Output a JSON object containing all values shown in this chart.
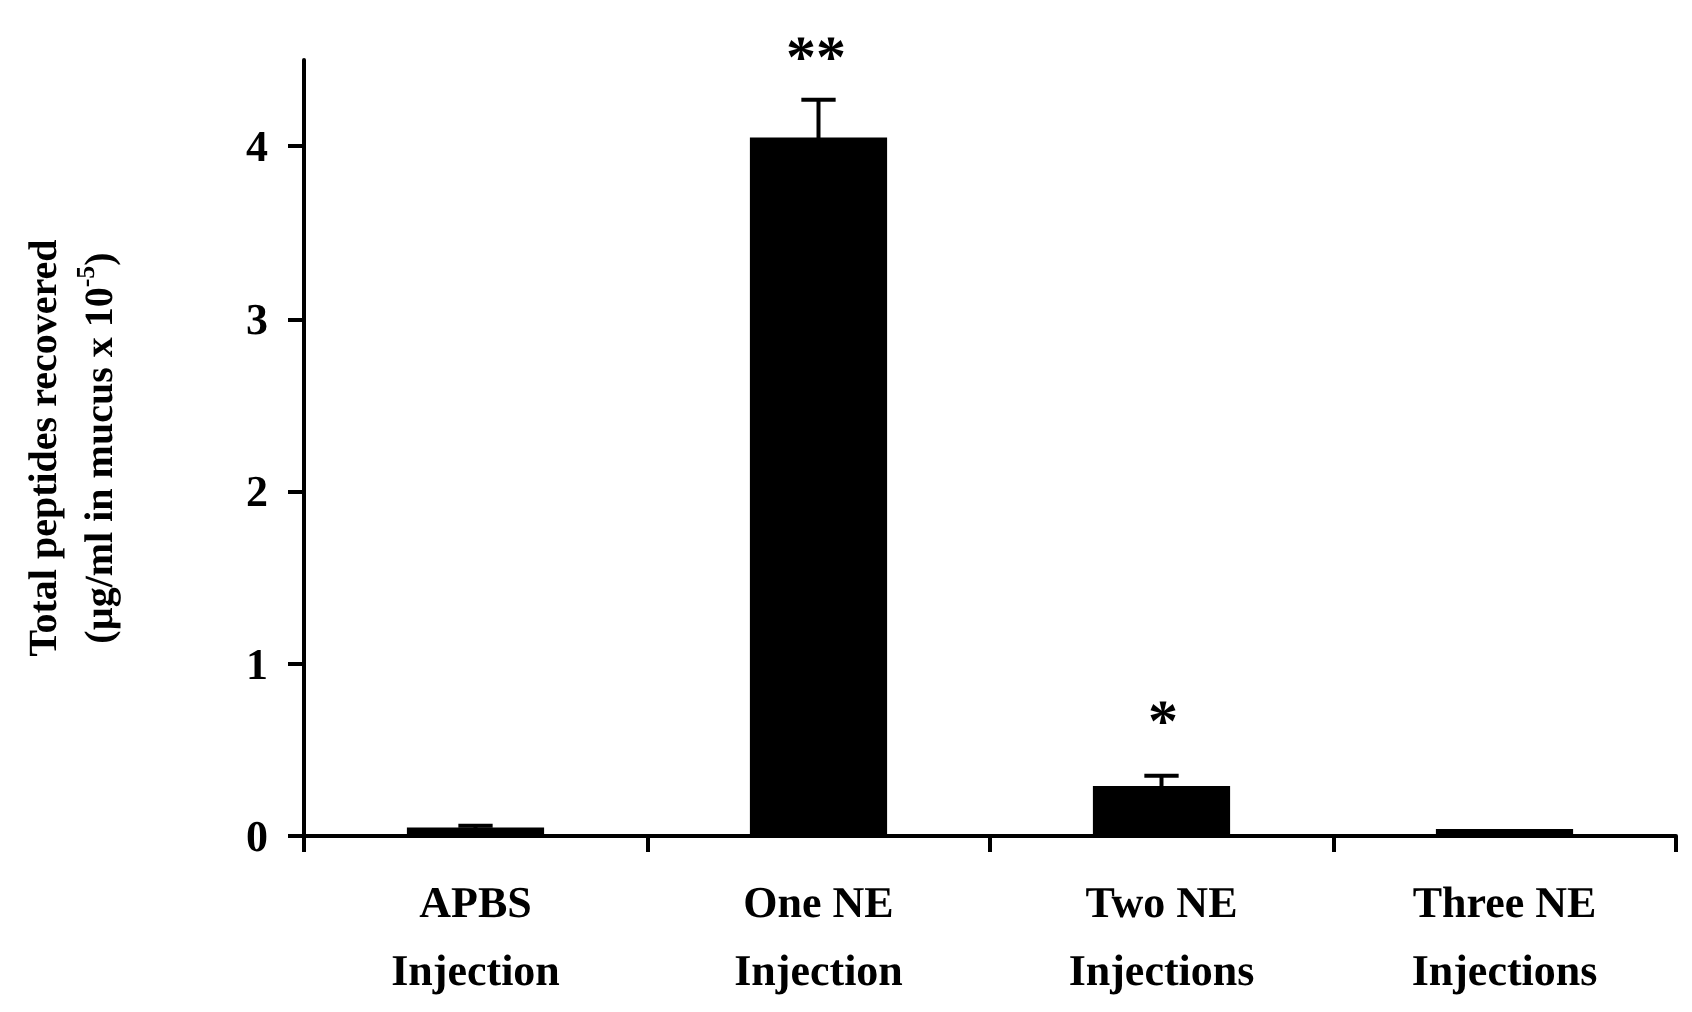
{
  "chart_data": {
    "type": "bar",
    "ylabel": "Total peptides recovered\n(µg/ml in mucus x 10$^{-5}$)",
    "categories": [
      "APBS\nInjection",
      "One NE\nInjection",
      "Two NE\nInjections",
      "Three NE\nInjections"
    ],
    "values": [
      0.05,
      4.05,
      0.29,
      0.04
    ],
    "errors": [
      0.01,
      0.22,
      0.06,
      null
    ],
    "color": "#000000",
    "ylim": [
      0,
      4.5
    ],
    "yticks": [
      0,
      1,
      2,
      3,
      4
    ],
    "annotations": [
      "**",
      "*"
    ],
    "grid": false
  }
}
